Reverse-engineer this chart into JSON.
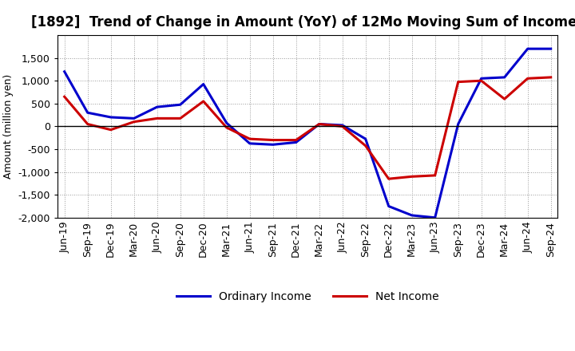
{
  "title": "[1892]  Trend of Change in Amount (YoY) of 12Mo Moving Sum of Incomes",
  "ylabel": "Amount (million yen)",
  "x_labels": [
    "Jun-19",
    "Sep-19",
    "Dec-19",
    "Mar-20",
    "Jun-20",
    "Sep-20",
    "Dec-20",
    "Mar-21",
    "Jun-21",
    "Sep-21",
    "Dec-21",
    "Mar-22",
    "Jun-22",
    "Sep-22",
    "Dec-22",
    "Mar-23",
    "Jun-23",
    "Sep-23",
    "Dec-23",
    "Mar-24",
    "Jun-24",
    "Sep-24"
  ],
  "ordinary_income": [
    1200,
    300,
    200,
    175,
    425,
    475,
    925,
    75,
    -375,
    -400,
    -350,
    50,
    25,
    -275,
    -1750,
    -1950,
    -2000,
    50,
    1050,
    1075,
    1700,
    1700
  ],
  "net_income": [
    650,
    50,
    -75,
    100,
    175,
    175,
    550,
    -25,
    -275,
    -300,
    -300,
    50,
    0,
    -425,
    -1150,
    -1100,
    -1075,
    975,
    1000,
    600,
    1050,
    1075
  ],
  "ordinary_income_color": "#0000cc",
  "net_income_color": "#cc0000",
  "line_width": 2.2,
  "background_color": "#ffffff",
  "grid_color": "#999999",
  "ylim": [
    -2000,
    2000
  ],
  "yticks": [
    -2000,
    -1500,
    -1000,
    -500,
    0,
    500,
    1000,
    1500
  ],
  "legend_labels": [
    "Ordinary Income",
    "Net Income"
  ],
  "title_fontsize": 12,
  "axis_fontsize": 9,
  "tick_fontsize": 9
}
